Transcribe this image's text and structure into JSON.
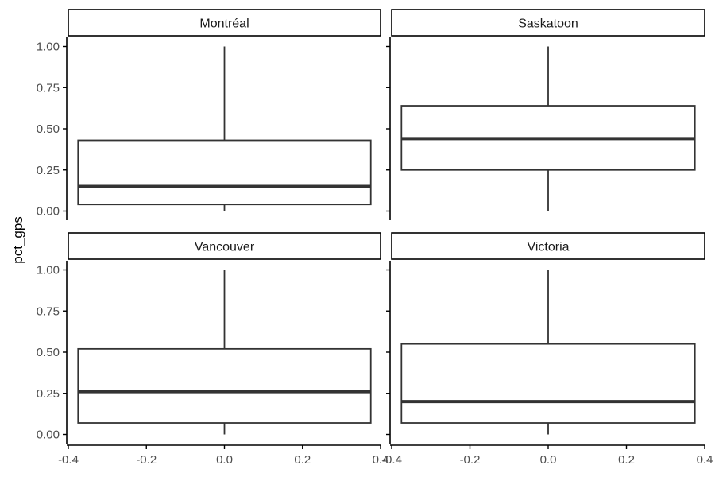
{
  "chart_data": {
    "type": "boxplot",
    "ylabel": "pct_gps",
    "xlim": [
      -0.4,
      0.4
    ],
    "ylim": [
      0,
      1
    ],
    "x_ticks": [
      "-0.4",
      "-0.2",
      "0.0",
      "0.2",
      "0.4"
    ],
    "y_ticks": [
      "0.00",
      "0.25",
      "0.50",
      "0.75",
      "1.00"
    ],
    "box_x_range": [
      -0.375,
      0.375
    ],
    "grid": false,
    "facets": [
      {
        "label": "Montréal",
        "min": 0.0,
        "q1": 0.04,
        "median": 0.15,
        "q3": 0.43,
        "max": 1.0
      },
      {
        "label": "Saskatoon",
        "min": 0.0,
        "q1": 0.25,
        "median": 0.44,
        "q3": 0.64,
        "max": 1.0
      },
      {
        "label": "Vancouver",
        "min": 0.0,
        "q1": 0.07,
        "median": 0.26,
        "q3": 0.52,
        "max": 1.0
      },
      {
        "label": "Victoria",
        "min": 0.0,
        "q1": 0.07,
        "median": 0.2,
        "q3": 0.55,
        "max": 1.0
      }
    ]
  },
  "colors": {
    "line": "#333333",
    "axis": "#000000",
    "strip_fill": "#ffffff",
    "text": "#4d4d4d",
    "title": "#000000"
  }
}
